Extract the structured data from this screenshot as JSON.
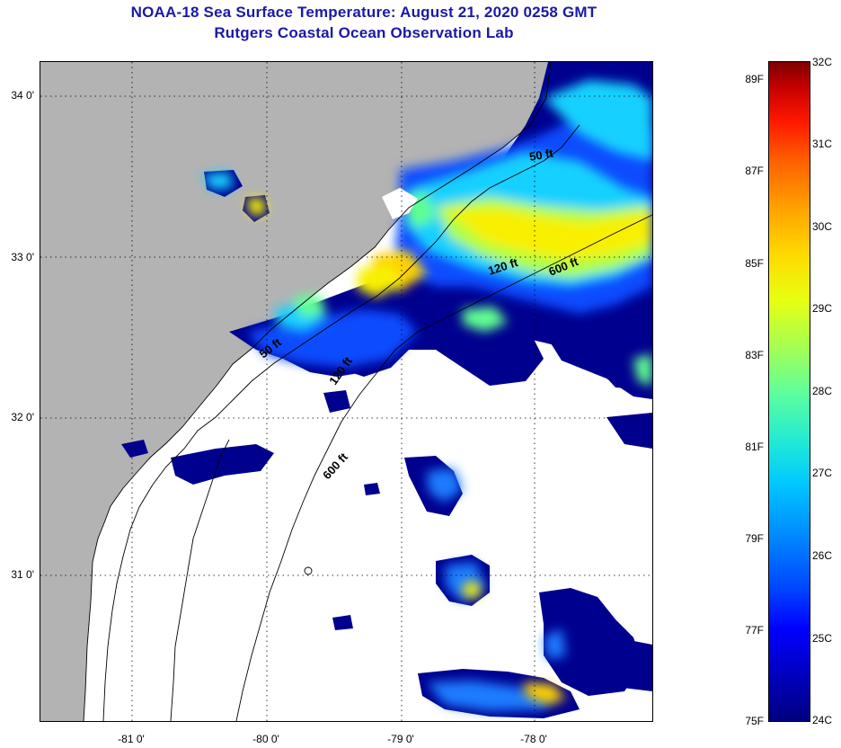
{
  "header": {
    "title": "NOAA-18 Sea Surface Temperature:  August 21, 2020 0258 GMT",
    "subtitle": "Rutgers Coastal Ocean Observation Lab"
  },
  "map": {
    "lat_labels": [
      "34 0'",
      "33 0'",
      "32 0'",
      "31 0'"
    ],
    "lon_labels": [
      "-81 0'",
      "-80 0'",
      "-79 0'",
      "-78 0'"
    ],
    "contour_labels": [
      "50 ft",
      "120 ft",
      "600 ft",
      "50 ft",
      "120 ft",
      "600 ft"
    ],
    "colors": {
      "land": "#b3b3b3",
      "missing": "#ffffff",
      "coast": "#000000"
    }
  },
  "colorbar": {
    "fahrenheit": [
      "89F",
      "87F",
      "85F",
      "83F",
      "81F",
      "79F",
      "77F",
      "75F"
    ],
    "celsius": [
      "32C",
      "31C",
      "30C",
      "29C",
      "28C",
      "27C",
      "26C",
      "25C",
      "24C"
    ]
  }
}
